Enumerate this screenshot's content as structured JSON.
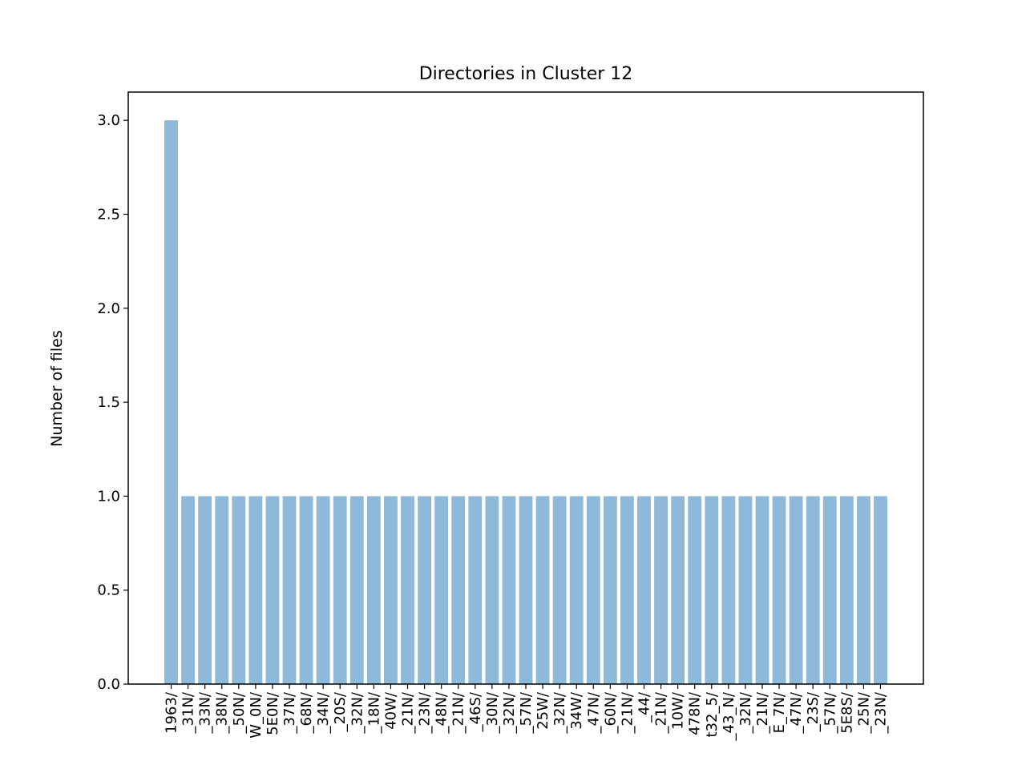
{
  "chart_data": {
    "type": "bar",
    "title": "Directories in Cluster 12",
    "xlabel": "",
    "ylabel": "Number of files",
    "ylim": [
      0,
      3.15
    ],
    "yticks": [
      "0.0",
      "0.5",
      "1.0",
      "1.5",
      "2.0",
      "2.5",
      "3.0"
    ],
    "grid": false,
    "bar_color": "#8fb9d9",
    "categories": [
      "1963/",
      "_31N/",
      "_33N/",
      "_38N/",
      "_50N/",
      "W_0N/",
      "5E0N/",
      "_37N/",
      "_68N/",
      "_34N/",
      "_20S/",
      "_32N/",
      "_18N/",
      "40W/",
      "_21N/",
      "_23N/",
      "_48N/",
      "_21N/",
      "_46S/",
      "_30N/",
      "_32N/",
      "_57N/",
      "25W/",
      "_32N/",
      "34W/",
      "_47N/",
      "_60N/",
      "_21N/",
      "_44/",
      "_21N/",
      "10W/",
      "478N/",
      "t32_5/",
      "_43_N/",
      "_32N/",
      "_21N/",
      "E_7N/",
      "_47N/",
      "_23S/",
      "_57N/",
      "5E8S/",
      "_25N/",
      "_23N/"
    ],
    "values": [
      3,
      1,
      1,
      1,
      1,
      1,
      1,
      1,
      1,
      1,
      1,
      1,
      1,
      1,
      1,
      1,
      1,
      1,
      1,
      1,
      1,
      1,
      1,
      1,
      1,
      1,
      1,
      1,
      1,
      1,
      1,
      1,
      1,
      1,
      1,
      1,
      1,
      1,
      1,
      1,
      1,
      1,
      1
    ]
  }
}
